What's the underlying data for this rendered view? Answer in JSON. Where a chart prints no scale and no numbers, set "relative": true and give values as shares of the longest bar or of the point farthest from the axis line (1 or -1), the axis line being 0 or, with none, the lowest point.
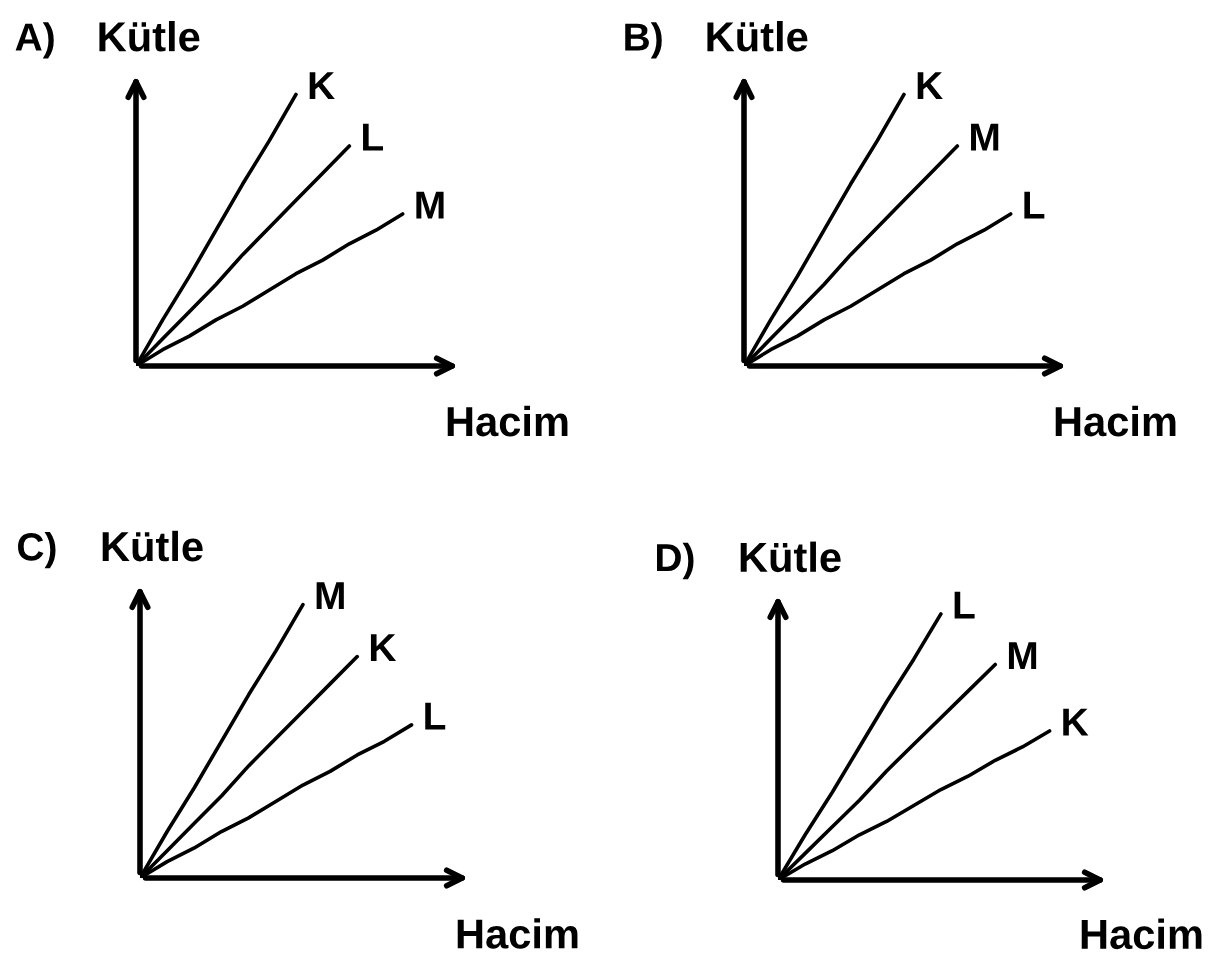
{
  "chart_data": [
    {
      "type": "line",
      "title": "A)",
      "xlabel": "Hacim",
      "ylabel": "Kütle",
      "relative": true,
      "tick_labels": false,
      "legend": false,
      "marker": "none",
      "line_style": "solid",
      "categories": [
        null,
        null,
        null,
        null,
        null,
        null,
        null,
        null,
        null,
        null,
        null
      ],
      "series": [
        {
          "name": "K",
          "color": "#000000",
          "values": [
            0,
            0.17,
            0.33,
            0.5,
            0.67,
            0.83,
            1,
            null,
            null,
            null,
            null
          ]
        },
        {
          "name": "L",
          "color": "#000000",
          "values": [
            0,
            0.1,
            0.2,
            0.3,
            0.41,
            0.51,
            0.61,
            0.71,
            0.81,
            null,
            null
          ]
        },
        {
          "name": "M",
          "color": "#000000",
          "values": [
            0,
            0.06,
            0.11,
            0.17,
            0.22,
            0.28,
            0.34,
            0.39,
            0.45,
            0.5,
            0.56
          ]
        }
      ]
    },
    {
      "type": "line",
      "title": "B)",
      "xlabel": "Hacim",
      "ylabel": "Kütle",
      "relative": true,
      "tick_labels": false,
      "legend": false,
      "marker": "none",
      "line_style": "solid",
      "categories": [
        null,
        null,
        null,
        null,
        null,
        null,
        null,
        null,
        null,
        null,
        null
      ],
      "series": [
        {
          "name": "K",
          "color": "#000000",
          "values": [
            0,
            0.17,
            0.33,
            0.5,
            0.67,
            0.83,
            1,
            null,
            null,
            null,
            null
          ]
        },
        {
          "name": "M",
          "color": "#000000",
          "values": [
            0,
            0.1,
            0.2,
            0.3,
            0.41,
            0.51,
            0.61,
            0.71,
            0.81,
            null,
            null
          ]
        },
        {
          "name": "L",
          "color": "#000000",
          "values": [
            0,
            0.06,
            0.11,
            0.17,
            0.22,
            0.28,
            0.34,
            0.39,
            0.45,
            0.5,
            0.56
          ]
        }
      ]
    },
    {
      "type": "line",
      "title": "C)",
      "xlabel": "Hacim",
      "ylabel": "Kütle",
      "relative": true,
      "tick_labels": false,
      "legend": false,
      "marker": "none",
      "line_style": "solid",
      "categories": [
        null,
        null,
        null,
        null,
        null,
        null,
        null,
        null,
        null,
        null,
        null
      ],
      "series": [
        {
          "name": "M",
          "color": "#000000",
          "values": [
            0,
            0.17,
            0.33,
            0.5,
            0.67,
            0.83,
            1,
            null,
            null,
            null,
            null
          ]
        },
        {
          "name": "K",
          "color": "#000000",
          "values": [
            0,
            0.1,
            0.2,
            0.3,
            0.41,
            0.51,
            0.61,
            0.71,
            0.81,
            null,
            null
          ]
        },
        {
          "name": "L",
          "color": "#000000",
          "values": [
            0,
            0.06,
            0.11,
            0.17,
            0.22,
            0.28,
            0.34,
            0.39,
            0.45,
            0.5,
            0.56
          ]
        }
      ]
    },
    {
      "type": "line",
      "title": "D)",
      "xlabel": "Hacim",
      "ylabel": "Kütle",
      "relative": true,
      "tick_labels": false,
      "legend": false,
      "marker": "none",
      "line_style": "solid",
      "categories": [
        null,
        null,
        null,
        null,
        null,
        null,
        null,
        null,
        null,
        null,
        null
      ],
      "series": [
        {
          "name": "L",
          "color": "#000000",
          "values": [
            0,
            0.17,
            0.33,
            0.5,
            0.67,
            0.83,
            1,
            null,
            null,
            null,
            null
          ]
        },
        {
          "name": "M",
          "color": "#000000",
          "values": [
            0,
            0.1,
            0.2,
            0.3,
            0.41,
            0.51,
            0.61,
            0.71,
            0.81,
            null,
            null
          ]
        },
        {
          "name": "K",
          "color": "#000000",
          "values": [
            0,
            0.06,
            0.11,
            0.17,
            0.22,
            0.28,
            0.34,
            0.39,
            0.45,
            0.5,
            0.56
          ]
        }
      ]
    }
  ]
}
